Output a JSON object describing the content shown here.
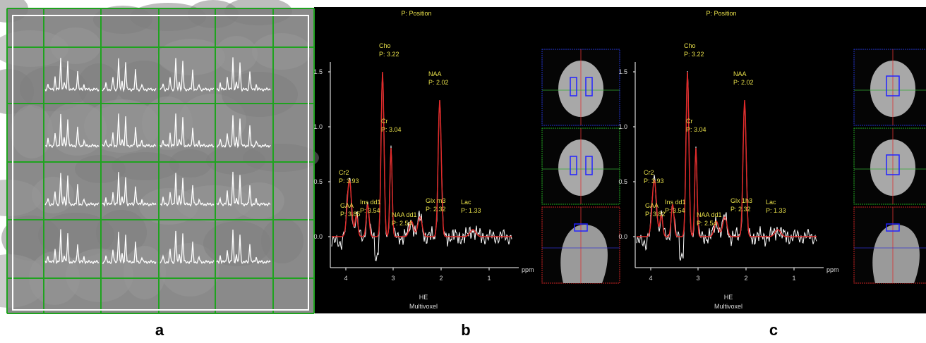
{
  "panels": [
    {
      "caption": "a"
    },
    {
      "caption": "b",
      "header": "P: Position",
      "yticks": [
        "1.5",
        "1.0",
        "0.5",
        "0.0"
      ],
      "xticks": [
        "4",
        "3",
        "2",
        "1"
      ],
      "x_unit": "ppm",
      "footer": [
        "HE",
        "Multivoxel"
      ],
      "peaks": [
        {
          "name": "Cho",
          "position": "P: 3.22"
        },
        {
          "name": "NAA",
          "position": "P: 2.02"
        },
        {
          "name": "Cr",
          "position": "P: 3.04"
        },
        {
          "name": "Cr2",
          "position": "P: 3.93"
        },
        {
          "name": "Ins dd1",
          "position": "P: 3.54"
        },
        {
          "name": "GAA",
          "position": "P: 3.85"
        },
        {
          "name": "NAA dd1",
          "position": "P: 2.54"
        },
        {
          "name": "Glx m3",
          "position": "P: 2.32"
        },
        {
          "name": "Lac",
          "position": "P: 1.33"
        }
      ]
    },
    {
      "caption": "c",
      "header": "P: Position",
      "yticks": [
        "1.5",
        "1.0",
        "0.5",
        "0.0"
      ],
      "xticks": [
        "4",
        "3",
        "2",
        "1"
      ],
      "x_unit": "ppm",
      "footer": [
        "HE",
        "Multivoxel"
      ],
      "peaks": [
        {
          "name": "Cho",
          "position": "P: 3.22"
        },
        {
          "name": "NAA",
          "position": "P: 2.02"
        },
        {
          "name": "Cr",
          "position": "P: 3.04"
        },
        {
          "name": "Cr2",
          "position": "P: 3.93"
        },
        {
          "name": "Ins dd1",
          "position": "P: 3.54"
        },
        {
          "name": "GAA",
          "position": "P: 3.82"
        },
        {
          "name": "NAA dd1",
          "position": "P: 2.54"
        },
        {
          "name": "Glx 1h3",
          "position": "P: 2.32"
        },
        {
          "name": "Lac",
          "position": "P: 1.33"
        }
      ]
    }
  ]
}
